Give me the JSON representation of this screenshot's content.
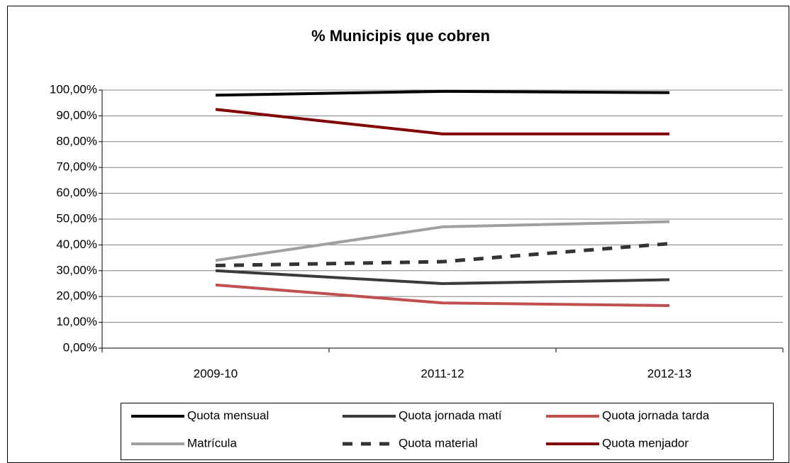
{
  "chart_data": {
    "type": "line",
    "title": "% Municipis que cobren",
    "categories": [
      "2009-10",
      "2011-12",
      "2012-13"
    ],
    "series": [
      {
        "name": "Quota mensual",
        "color": "#000000",
        "values": [
          98,
          99.5,
          99
        ]
      },
      {
        "name": "Quota jornada matí",
        "color": "#3a3a3a",
        "values": [
          30,
          25,
          26.5
        ]
      },
      {
        "name": "Quota jornada tarda",
        "color": "#c0504d",
        "values": [
          24.5,
          17.5,
          16.5
        ]
      },
      {
        "name": "Matrícula",
        "color": "#a0a0a0",
        "values": [
          34,
          47,
          49
        ]
      },
      {
        "name": "Quota material",
        "color": "#333333",
        "style": "dashed",
        "values": [
          32,
          33.5,
          40.5
        ]
      },
      {
        "name": "Quota menjador",
        "color": "#800000",
        "values": [
          92.5,
          83,
          83
        ]
      }
    ],
    "ylim": [
      0,
      100
    ],
    "yticks": [
      {
        "value": 0,
        "label": "0,00%"
      },
      {
        "value": 10,
        "label": "10,00%"
      },
      {
        "value": 20,
        "label": "20,00%"
      },
      {
        "value": 30,
        "label": "30,00%"
      },
      {
        "value": 40,
        "label": "40,00%"
      },
      {
        "value": 50,
        "label": "50,00%"
      },
      {
        "value": 60,
        "label": "60,00%"
      },
      {
        "value": 70,
        "label": "70,00%"
      },
      {
        "value": 80,
        "label": "80,00%"
      },
      {
        "value": 90,
        "label": "90,00%"
      },
      {
        "value": 100,
        "label": "100,00%"
      }
    ],
    "grid": true,
    "legend": "bottom"
  }
}
